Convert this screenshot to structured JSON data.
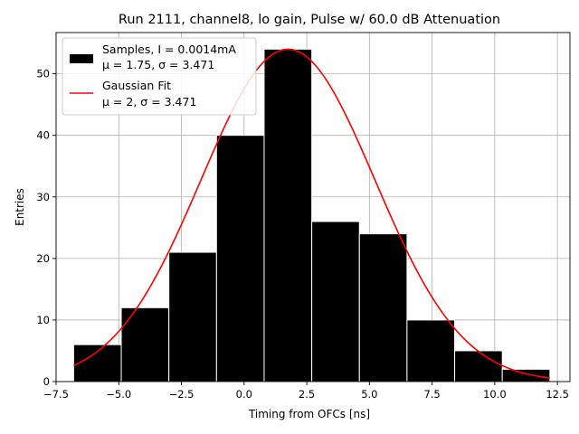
{
  "chart_data": {
    "type": "bar",
    "title": "Run 2111, channel8, lo gain, Pulse w/ 60.0 dB Attenuation",
    "xlabel": "Timing from OFCs [ns]",
    "ylabel": "Entries",
    "xlim": [
      -7.5,
      13.0
    ],
    "ylim": [
      0,
      56.7
    ],
    "grid": true,
    "xticks": [
      -7.5,
      -5.0,
      -2.5,
      0.0,
      2.5,
      5.0,
      7.5,
      10.0,
      12.5
    ],
    "xtick_labels": [
      "−7.5",
      "−5.0",
      "−2.5",
      "0.0",
      "2.5",
      "5.0",
      "7.5",
      "10.0",
      "12.5"
    ],
    "yticks": [
      0,
      10,
      20,
      30,
      40,
      50
    ],
    "ytick_labels": [
      "0",
      "10",
      "20",
      "30",
      "40",
      "50"
    ],
    "histogram": {
      "name": "Samples, I = 0.0014mA",
      "stats_label": "μ = 1.75, σ = 3.471",
      "color": "#000000",
      "bin_edges": [
        -6.8,
        -4.9,
        -3.0,
        -1.1,
        0.8,
        2.7,
        4.6,
        6.5,
        8.4,
        10.3,
        12.2
      ],
      "counts": [
        6,
        12,
        21,
        40,
        54,
        26,
        24,
        10,
        5,
        2
      ]
    },
    "fit": {
      "name": "Gaussian Fit",
      "stats_label": "μ = 2, σ = 3.471",
      "color": "#ff0000",
      "mu": 1.75,
      "sigma": 3.471,
      "amplitude": 54,
      "x_range": [
        -6.8,
        12.2
      ]
    },
    "legend_position": "top-left"
  }
}
